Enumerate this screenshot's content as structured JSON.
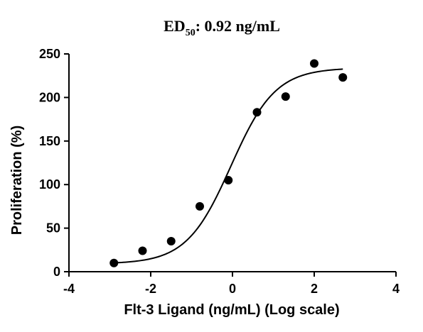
{
  "chart_data": {
    "type": "scatter",
    "title_main": "ED",
    "title_sub": "50",
    "title_rest": ": 0.92 ng/mL",
    "xlabel": "Flt-3 Ligand (ng/mL) (Log scale)",
    "ylabel": "Proliferation (%)",
    "xlim": [
      -4,
      4
    ],
    "ylim": [
      0,
      250
    ],
    "x_ticks": [
      -4,
      -2,
      0,
      2,
      4
    ],
    "y_ticks": [
      0,
      50,
      100,
      150,
      200,
      250
    ],
    "grid": false,
    "series": [
      {
        "type": "scatter",
        "x": [
          -2.9,
          -2.2,
          -1.5,
          -0.8,
          -0.1,
          0.6,
          1.3,
          2.0,
          2.7
        ],
        "y": [
          10,
          24,
          35,
          75,
          105,
          183,
          201,
          239,
          223
        ]
      }
    ],
    "fit": {
      "model": "4PL",
      "bottom": 9,
      "top": 234,
      "log_ec50": -0.036,
      "hill": 0.8,
      "x_range": [
        -2.9,
        2.7
      ]
    }
  }
}
